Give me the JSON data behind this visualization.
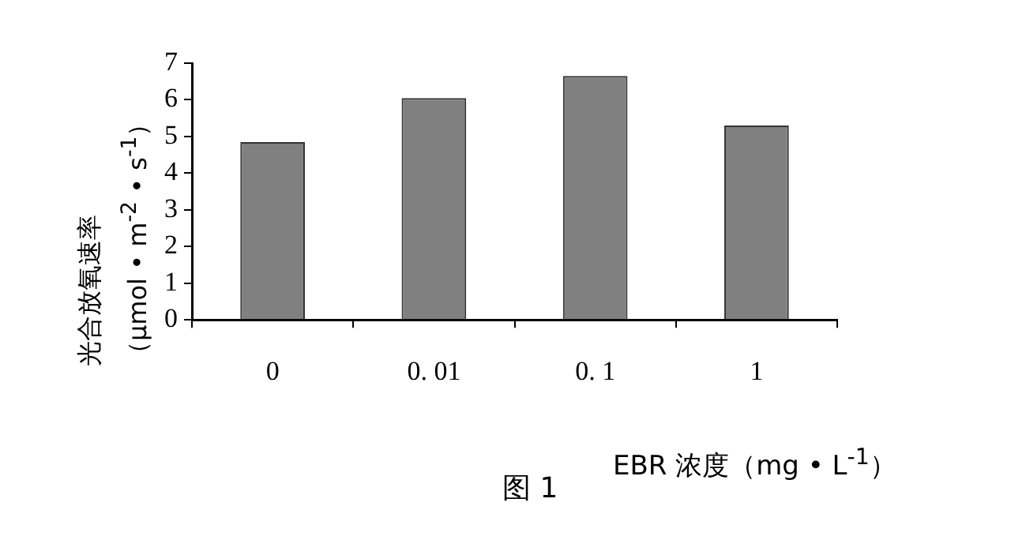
{
  "chart_data": {
    "type": "bar",
    "ylabel": "光合放氧速率（μmol • m$^{-2}$ • s$^{-1}$）",
    "xlabel": "EBR 浓度（mg • L$^{-1}$）",
    "annotations": [
      "图 1"
    ],
    "categories": [
      "0",
      "0. 01",
      "0. 1",
      "1"
    ],
    "series": [
      {
        "color": "#808080",
        "values": [
          4.85,
          6.05,
          6.65,
          5.3
        ]
      }
    ],
    "ylim": [
      0,
      7
    ],
    "yticks": [
      0,
      1,
      2,
      3,
      4,
      5,
      6,
      7
    ],
    "grid": false,
    "legend": false
  }
}
